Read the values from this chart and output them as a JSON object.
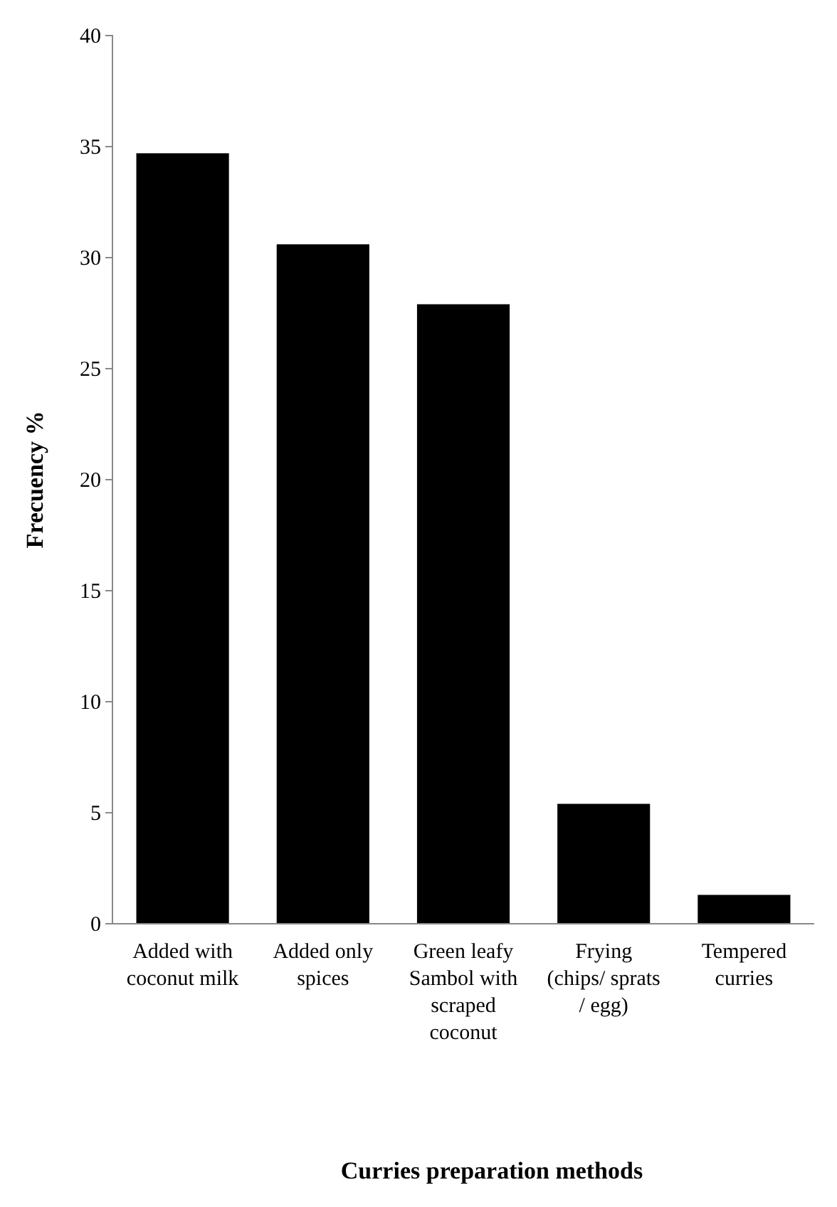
{
  "chart_data": {
    "type": "bar",
    "xlabel": "Curries preparation methods",
    "ylabel": "Frecuency %",
    "categories": [
      "Added with coconut milk",
      "Added only spices",
      "Green leafy Sambol with scraped coconut",
      "Frying (chips/ sprats / egg)",
      "Tempered curries"
    ],
    "values": [
      34.7,
      30.6,
      27.9,
      5.4,
      1.3
    ],
    "color": "#000000",
    "ylim": [
      0,
      40
    ],
    "yticks": [
      0,
      5,
      10,
      15,
      20,
      25,
      30,
      35,
      40
    ],
    "grid": false
  }
}
